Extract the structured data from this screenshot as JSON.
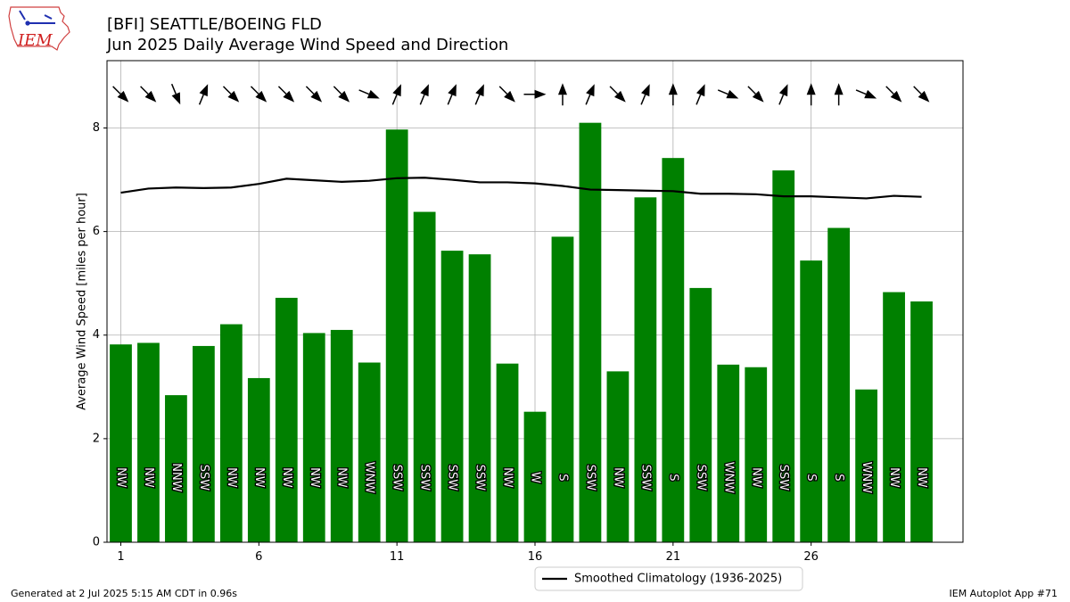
{
  "header": {
    "title": "[BFI] SEATTLE/BOEING FLD",
    "subtitle": "Jun 2025 Daily Average Wind Speed and Direction"
  },
  "logo": {
    "text": "IEM"
  },
  "footer": {
    "generated": "Generated at 2 Jul 2025 5:15 AM CDT in 0.96s",
    "app": "IEM Autoplot App #71"
  },
  "colors": {
    "bars": "#008000",
    "climatology": "#000000",
    "grid": "#b0b0b0",
    "arrows": "#000000"
  },
  "chart_data": {
    "type": "bar",
    "x": [
      1,
      2,
      3,
      4,
      5,
      6,
      7,
      8,
      9,
      10,
      11,
      12,
      13,
      14,
      15,
      16,
      17,
      18,
      19,
      20,
      21,
      22,
      23,
      24,
      25,
      26,
      27,
      28,
      29,
      30
    ],
    "values": [
      3.82,
      3.85,
      2.84,
      3.79,
      4.21,
      3.17,
      4.72,
      4.04,
      4.1,
      3.47,
      7.97,
      6.38,
      5.63,
      5.56,
      3.45,
      2.52,
      5.9,
      8.1,
      3.3,
      6.66,
      7.42,
      4.91,
      3.43,
      3.38,
      7.18,
      5.44,
      6.07,
      2.95,
      4.83,
      4.65
    ],
    "directions": [
      "NW",
      "NW",
      "NNW",
      "SSW",
      "NW",
      "NW",
      "NW",
      "NW",
      "NW",
      "WNW",
      "SSW",
      "SSW",
      "SSW",
      "SSW",
      "NW",
      "W",
      "S",
      "SSW",
      "NW",
      "SSW",
      "S",
      "SSW",
      "WNW",
      "NW",
      "SSW",
      "S",
      "S",
      "WNW",
      "NW",
      "NW"
    ],
    "climatology": {
      "name": "Smoothed Climatology (1936-2025)",
      "values": [
        6.75,
        6.83,
        6.85,
        6.84,
        6.85,
        6.92,
        7.02,
        6.99,
        6.96,
        6.98,
        7.03,
        7.04,
        7.0,
        6.95,
        6.95,
        6.93,
        6.88,
        6.81,
        6.8,
        6.79,
        6.78,
        6.73,
        6.73,
        6.72,
        6.68,
        6.68,
        6.66,
        6.64,
        6.69,
        6.67
      ]
    },
    "ylabel": "Average Wind Speed [miles per hour]",
    "ylim": [
      0,
      9.3
    ],
    "yticks": [
      0,
      2,
      4,
      6,
      8
    ],
    "xticks": [
      1,
      6,
      11,
      16,
      21,
      26
    ],
    "xlim": [
      0.5,
      31.5
    ],
    "grid": true,
    "legend_position": "bottom-center"
  }
}
